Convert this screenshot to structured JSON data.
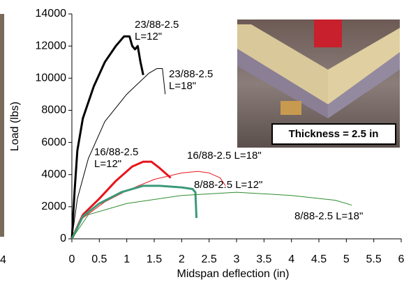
{
  "chart_data": {
    "type": "line",
    "xlabel": "Midspan deflection (in)",
    "ylabel": "Load (lbs)",
    "xlim": [
      0,
      6
    ],
    "xticks": [
      0,
      0.5,
      1,
      1.5,
      2,
      2.5,
      3,
      3.5,
      4,
      4.5,
      5,
      5.5,
      6
    ],
    "ylim": [
      0,
      14000
    ],
    "yticks": [
      0,
      2000,
      4000,
      6000,
      8000,
      10000,
      12000,
      14000
    ],
    "annotations": [
      "Thickness = 2.5 in",
      "4"
    ],
    "series": [
      {
        "name": "23/88-2.5\nL=12\"",
        "color": "#000000",
        "width": 3,
        "x": [
          0,
          0.05,
          0.1,
          0.2,
          0.4,
          0.6,
          0.8,
          0.95,
          1.05,
          1.1,
          1.15,
          1.2,
          1.25,
          1.3
        ],
        "values": [
          0,
          3000,
          5500,
          7500,
          9500,
          11000,
          12000,
          12600,
          12600,
          12000,
          11800,
          12000,
          11000,
          10200
        ]
      },
      {
        "name": "23/88-2.5\nL=18\"",
        "color": "#000000",
        "width": 1,
        "x": [
          0,
          0.1,
          0.3,
          0.6,
          1.0,
          1.4,
          1.55,
          1.65,
          1.7
        ],
        "values": [
          0,
          2500,
          5000,
          7300,
          9000,
          10300,
          10600,
          10600,
          9000
        ]
      },
      {
        "name": "16/88-2.5\nL=12\"",
        "color": "#e8141b",
        "width": 3,
        "x": [
          0,
          0.2,
          0.5,
          0.8,
          1.1,
          1.3,
          1.45,
          1.6,
          1.8
        ],
        "values": [
          0,
          1500,
          2500,
          3600,
          4500,
          4800,
          4800,
          4400,
          3800
        ]
      },
      {
        "name": "16/88-2.5   L=18\"",
        "color": "#e8141b",
        "width": 1,
        "x": [
          0,
          0.2,
          0.6,
          1.0,
          1.5,
          2.0,
          2.3,
          2.5,
          2.7,
          2.8
        ],
        "values": [
          0,
          1300,
          2300,
          3000,
          3700,
          4100,
          4200,
          4100,
          3800,
          3300
        ]
      },
      {
        "name": "8/88-2.5   L=12\"",
        "color": "#3a9a7a",
        "width": 3,
        "x": [
          0,
          0.2,
          0.5,
          0.9,
          1.3,
          1.6,
          2.0,
          2.2,
          2.25,
          2.27
        ],
        "values": [
          0,
          1400,
          2200,
          2900,
          3300,
          3300,
          3200,
          3100,
          2900,
          1300
        ]
      },
      {
        "name": "8/88-2.5   L=18\"",
        "color": "#2e8b2e",
        "width": 1,
        "x": [
          0,
          0.3,
          1.0,
          2.0,
          3.0,
          4.0,
          4.8,
          5.1
        ],
        "values": [
          0,
          1500,
          2200,
          2700,
          2900,
          2700,
          2400,
          2100
        ]
      }
    ]
  }
}
